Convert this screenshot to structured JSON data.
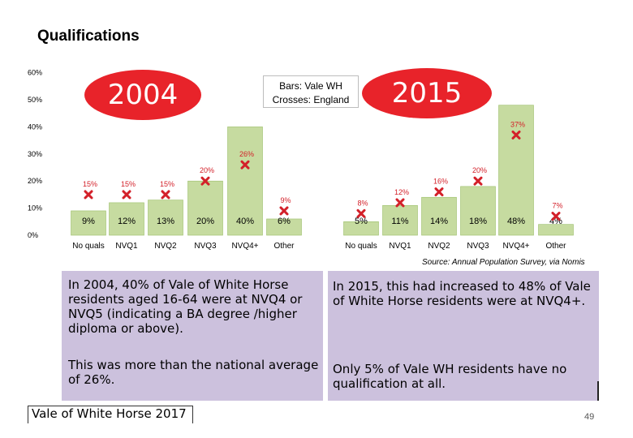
{
  "page_title": "Qualifications",
  "label_2004": "2004",
  "label_2015": "2015",
  "legend_line1": "Bars: Vale WH",
  "legend_line2": "Crosses: England",
  "source": "Source: Annual Population Survey, via Nomis",
  "text_left_1": "In 2004, 40% of Vale of White Horse residents aged 16-64 were at NVQ4 or NVQ5 (indicating a BA degree /higher diploma or above).",
  "text_left_2": "This was more than the national average of 26%.",
  "text_right_1": "In 2015, this had increased to 48% of Vale of White Horse residents were at NVQ4+.",
  "text_right_2": "Only 5% of Vale WH residents have no qualification at all.",
  "footer": "Vale of White Horse 2017",
  "page_number": "49",
  "colors": {
    "accent": "#e8232a",
    "bar": "#c6dba0",
    "bar_edge": "#9cbf6a",
    "cross": "#d32029",
    "box": "#ccc1dd"
  },
  "chart_data": {
    "type": "bar",
    "ylim": [
      0,
      60
    ],
    "yticks": [
      0,
      10,
      20,
      30,
      40,
      50,
      60
    ],
    "ytick_labels": [
      "0%",
      "10%",
      "20%",
      "30%",
      "40%",
      "50%",
      "60%"
    ],
    "panels": [
      {
        "label": "2004",
        "categories": [
          "No quals",
          "NVQ1",
          "NVQ2",
          "NVQ3",
          "NVQ4+",
          "Other"
        ],
        "series": [
          {
            "name": "Vale WH",
            "kind": "bar",
            "values": [
              9,
              12,
              13,
              20,
              40,
              6
            ],
            "labels": [
              "9%",
              "12%",
              "13%",
              "20%",
              "40%",
              "6%"
            ]
          },
          {
            "name": "England",
            "kind": "cross",
            "values": [
              15,
              15,
              15,
              20,
              26,
              9
            ],
            "labels": [
              "15%",
              "15%",
              "15%",
              "20%",
              "26%",
              "9%"
            ]
          }
        ]
      },
      {
        "label": "2015",
        "categories": [
          "No quals",
          "NVQ1",
          "NVQ2",
          "NVQ3",
          "NVQ4+",
          "Other"
        ],
        "series": [
          {
            "name": "Vale WH",
            "kind": "bar",
            "values": [
              5,
              11,
              14,
              18,
              48,
              4
            ],
            "labels": [
              "5%",
              "11%",
              "14%",
              "18%",
              "48%",
              "4%"
            ]
          },
          {
            "name": "England",
            "kind": "cross",
            "values": [
              8,
              12,
              16,
              20,
              37,
              7
            ],
            "labels": [
              "8%",
              "12%",
              "16%",
              "20%",
              "37%",
              "7%"
            ]
          }
        ]
      }
    ]
  }
}
